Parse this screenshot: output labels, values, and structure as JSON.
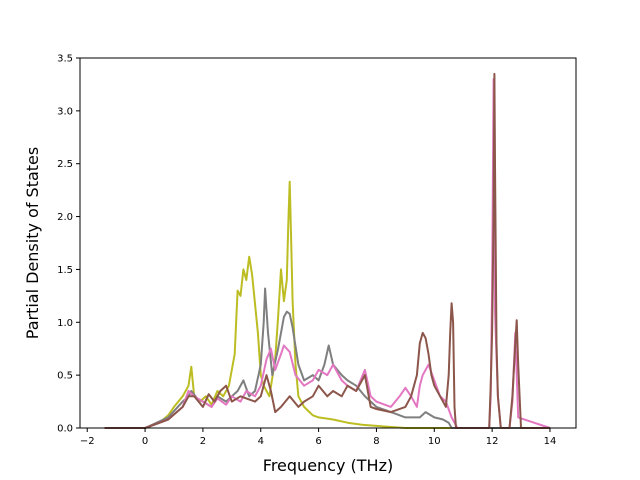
{
  "chart_data": {
    "type": "line",
    "title": "",
    "xlabel": "Frequency (THz)",
    "ylabel": "Partial Density of States",
    "xlim": [
      -2.25,
      14.9
    ],
    "ylim": [
      0,
      3.5
    ],
    "xticks": [
      -2,
      0,
      2,
      4,
      6,
      8,
      10,
      12,
      14
    ],
    "xtick_labels": [
      "−2",
      "0",
      "2",
      "4",
      "6",
      "8",
      "10",
      "12",
      "14"
    ],
    "yticks": [
      0.0,
      0.5,
      1.0,
      1.5,
      2.0,
      2.5,
      3.0,
      3.5
    ],
    "ytick_labels": [
      "0.0",
      "0.5",
      "1.0",
      "1.5",
      "2.0",
      "2.5",
      "3.0",
      "3.5"
    ],
    "grid": false,
    "legend": "none",
    "series": [
      {
        "color": "#bcbd22",
        "x": [
          -1.4,
          0.0,
          0.5,
          0.8,
          1.0,
          1.3,
          1.5,
          1.6,
          1.7,
          1.9,
          2.1,
          2.3,
          2.5,
          2.7,
          2.9,
          3.1,
          3.2,
          3.3,
          3.4,
          3.5,
          3.6,
          3.7,
          3.9,
          4.0,
          4.1,
          4.3,
          4.5,
          4.6,
          4.7,
          4.8,
          4.9,
          4.95,
          5.0,
          5.05,
          5.1,
          5.2,
          5.3,
          5.5,
          5.8,
          6.0,
          6.5,
          7.0,
          7.5,
          8.0,
          9.0,
          14.0
        ],
        "y": [
          0.0,
          0.0,
          0.05,
          0.12,
          0.2,
          0.3,
          0.4,
          0.58,
          0.3,
          0.25,
          0.3,
          0.22,
          0.35,
          0.3,
          0.4,
          0.7,
          1.3,
          1.25,
          1.5,
          1.4,
          1.62,
          1.45,
          0.9,
          0.5,
          0.4,
          0.3,
          0.65,
          1.05,
          1.5,
          1.2,
          1.4,
          1.9,
          2.33,
          1.8,
          1.2,
          0.6,
          0.3,
          0.2,
          0.12,
          0.1,
          0.08,
          0.05,
          0.03,
          0.02,
          0.0,
          0.0
        ]
      },
      {
        "color": "#7f7f7f",
        "x": [
          -1.4,
          0.0,
          0.8,
          1.3,
          1.5,
          1.6,
          1.8,
          2.0,
          2.3,
          2.5,
          2.8,
          3.0,
          3.2,
          3.4,
          3.6,
          3.8,
          4.0,
          4.1,
          4.15,
          4.25,
          4.4,
          4.6,
          4.8,
          4.9,
          5.0,
          5.1,
          5.3,
          5.5,
          5.8,
          6.0,
          6.2,
          6.35,
          6.5,
          6.8,
          7.0,
          7.3,
          7.6,
          7.8,
          8.0,
          8.5,
          9.0,
          9.3,
          9.5,
          9.7,
          10.0,
          10.3,
          10.5,
          10.6,
          10.8,
          14.0
        ],
        "y": [
          0.0,
          0.0,
          0.1,
          0.25,
          0.3,
          0.35,
          0.28,
          0.25,
          0.2,
          0.3,
          0.25,
          0.3,
          0.35,
          0.45,
          0.3,
          0.35,
          0.6,
          1.0,
          1.32,
          0.9,
          0.5,
          0.75,
          1.05,
          1.1,
          1.08,
          0.95,
          0.6,
          0.45,
          0.5,
          0.45,
          0.6,
          0.78,
          0.6,
          0.5,
          0.45,
          0.4,
          0.3,
          0.25,
          0.2,
          0.15,
          0.1,
          0.1,
          0.1,
          0.15,
          0.1,
          0.08,
          0.05,
          0.0,
          0.0,
          0.0
        ]
      },
      {
        "color": "#e377c2",
        "x": [
          -1.4,
          0.0,
          0.8,
          1.3,
          1.5,
          1.7,
          2.0,
          2.3,
          2.5,
          2.8,
          3.0,
          3.3,
          3.5,
          3.8,
          4.0,
          4.2,
          4.35,
          4.5,
          4.7,
          4.8,
          5.0,
          5.2,
          5.5,
          5.8,
          6.0,
          6.3,
          6.5,
          6.8,
          7.0,
          7.3,
          7.6,
          7.8,
          8.0,
          8.5,
          8.8,
          9.0,
          9.2,
          9.4,
          9.5,
          9.6,
          9.8,
          10.0,
          10.2,
          10.4,
          10.6,
          10.8,
          11.9,
          11.95,
          12.0,
          12.05,
          12.1,
          12.2,
          12.3,
          12.6,
          12.7,
          12.8,
          12.9,
          14.0
        ],
        "y": [
          0.0,
          0.0,
          0.08,
          0.2,
          0.35,
          0.3,
          0.25,
          0.2,
          0.28,
          0.22,
          0.3,
          0.25,
          0.35,
          0.3,
          0.4,
          0.65,
          0.75,
          0.55,
          0.7,
          0.78,
          0.72,
          0.5,
          0.4,
          0.45,
          0.55,
          0.5,
          0.6,
          0.45,
          0.4,
          0.35,
          0.55,
          0.3,
          0.25,
          0.2,
          0.3,
          0.38,
          0.3,
          0.2,
          0.4,
          0.5,
          0.6,
          0.45,
          0.3,
          0.25,
          0.1,
          0.0,
          0.0,
          0.3,
          1.3,
          3.3,
          1.1,
          0.3,
          0.0,
          0.0,
          0.25,
          0.9,
          0.1,
          0.0
        ]
      },
      {
        "color": "#8c564b",
        "x": [
          -1.4,
          0.0,
          0.8,
          1.3,
          1.5,
          1.7,
          2.0,
          2.2,
          2.4,
          2.6,
          2.8,
          3.0,
          3.3,
          3.5,
          3.8,
          4.0,
          4.2,
          4.35,
          4.5,
          4.7,
          5.0,
          5.3,
          5.5,
          5.8,
          6.0,
          6.3,
          6.5,
          6.8,
          7.0,
          7.3,
          7.6,
          7.8,
          8.0,
          8.5,
          9.0,
          9.2,
          9.4,
          9.5,
          9.6,
          9.7,
          9.8,
          9.9,
          10.0,
          10.2,
          10.4,
          10.5,
          10.55,
          10.6,
          10.65,
          10.7,
          10.75,
          11.9,
          11.95,
          12.0,
          12.05,
          12.08,
          12.1,
          12.15,
          12.2,
          12.3,
          12.6,
          12.7,
          12.8,
          12.85,
          12.9,
          13.0,
          14.0
        ],
        "y": [
          0.0,
          0.0,
          0.08,
          0.2,
          0.3,
          0.3,
          0.2,
          0.32,
          0.25,
          0.35,
          0.4,
          0.25,
          0.3,
          0.28,
          0.25,
          0.3,
          0.5,
          0.35,
          0.15,
          0.2,
          0.3,
          0.2,
          0.25,
          0.3,
          0.4,
          0.3,
          0.35,
          0.3,
          0.4,
          0.35,
          0.5,
          0.2,
          0.18,
          0.15,
          0.2,
          0.3,
          0.5,
          0.8,
          0.9,
          0.85,
          0.7,
          0.5,
          0.4,
          0.3,
          0.2,
          0.5,
          0.9,
          1.18,
          1.0,
          0.2,
          0.0,
          0.0,
          0.4,
          0.9,
          2.0,
          3.35,
          2.5,
          0.8,
          0.3,
          0.0,
          0.0,
          0.3,
          0.8,
          1.02,
          0.6,
          0.0,
          0.0
        ]
      }
    ]
  }
}
